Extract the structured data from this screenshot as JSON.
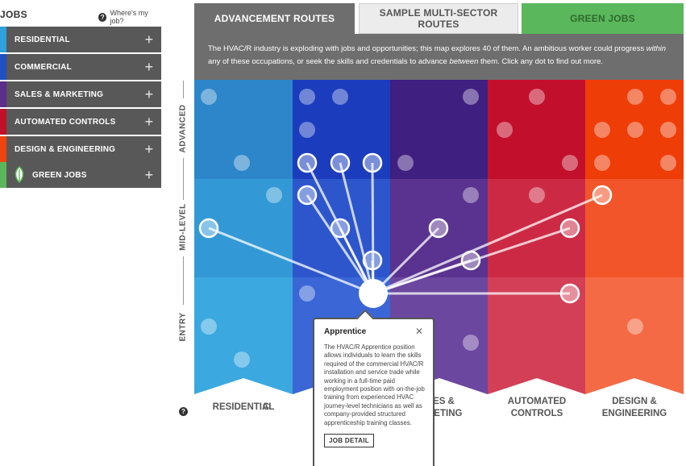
{
  "sidebar": {
    "title": "JOBS",
    "help_text": "Where's my job?",
    "items": [
      {
        "label": "RESIDENTIAL",
        "color": "#2f9fdd"
      },
      {
        "label": "COMMERCIAL",
        "color": "#1f4fc0"
      },
      {
        "label": "SALES & MARKETING",
        "color": "#5b2e8a"
      },
      {
        "label": "AUTOMATED CONTROLS",
        "color": "#c0102a"
      },
      {
        "label": "DESIGN & ENGINEERING",
        "color": "#f0440f"
      },
      {
        "label": "GREEN JOBS",
        "color": "#5bb75b"
      }
    ]
  },
  "tabs": {
    "advancement": "ADVANCEMENT ROUTES",
    "sample": "SAMPLE MULTI-SECTOR ROUTES",
    "green": "GREEN JOBS"
  },
  "description": {
    "part1": "The HVAC/R industry is exploding with jobs and opportunities; this map explores 40 of them. An ambitious worker could progress ",
    "em1": "within",
    "part2": " any of these occupations, or seek the skills and credentials to advance ",
    "em2": "between",
    "part3": " them. Click any dot to find out more."
  },
  "levels": {
    "advanced": "ADVANCED",
    "mid": "MID-LEVEL",
    "entry": "ENTRY"
  },
  "columns": [
    {
      "label": "RESIDENTIAL",
      "colors": [
        "#2d86c9",
        "#3399d6",
        "#3ba8e0"
      ]
    },
    {
      "label": "COMMERCIAL",
      "colors": [
        "#1b3dbd",
        "#2d56cc",
        "#3a66d6"
      ]
    },
    {
      "label": "SALES & MARKETING",
      "colors": [
        "#3f1f80",
        "#5a3390",
        "#6b47a0"
      ]
    },
    {
      "label": "AUTOMATED CONTROLS",
      "colors": [
        "#c2102c",
        "#cc2a44",
        "#d43f58"
      ]
    },
    {
      "label": "DESIGN & ENGINEERING",
      "colors": [
        "#ef3d08",
        "#f2552a",
        "#f46a44"
      ]
    }
  ],
  "col_labels_visible": {
    "residential": "RESIDENTIAL",
    "commercial_fragment": "C",
    "sales_line1": "LES &",
    "sales_line2": "KETING",
    "automated_line1": "AUTOMATED",
    "automated_line2": "CONTROLS",
    "design_line1": "DESIGN &",
    "design_line2": "ENGINEERING"
  },
  "popup": {
    "title": "Apprentice",
    "body": "The HVAC/R Apprentice position allows individuals to learn the skills required of the commercial HVAC/R installation and service trade while working in a full-time paid employment position with on-the-job training from experienced HVAC journey-level technicians as well as company-provided structured apprenticeship training classes.",
    "button": "JOB DETAIL"
  }
}
